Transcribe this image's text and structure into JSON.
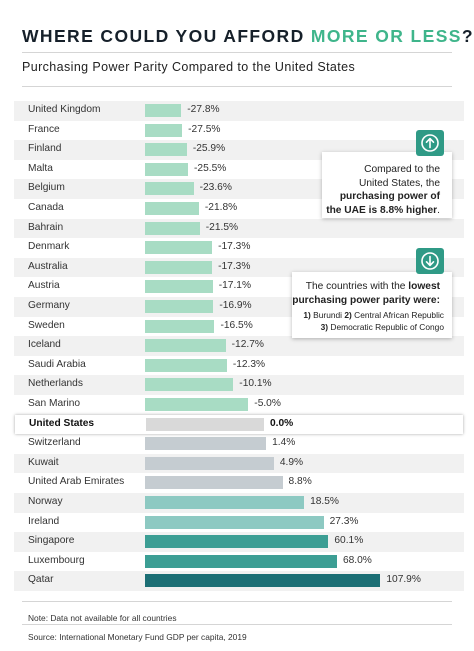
{
  "title": {
    "prefix": "WHERE COULD YOU AFFORD ",
    "highlight": "MORE OR LESS",
    "suffix": "?"
  },
  "subtitle": "Purchasing Power Parity Compared to the United States",
  "chart_data": {
    "type": "bar",
    "orientation": "horizontal",
    "title": "WHERE COULD YOU AFFORD MORE OR LESS?",
    "subtitle": "Purchasing Power Parity Compared to the United States",
    "unit": "%",
    "categories": [
      "United Kingdom",
      "France",
      "Finland",
      "Malta",
      "Belgium",
      "Canada",
      "Bahrain",
      "Denmark",
      "Australia",
      "Austria",
      "Germany",
      "Sweden",
      "Iceland",
      "Saudi Arabia",
      "Netherlands",
      "San Marino",
      "United States",
      "Switzerland",
      "Kuwait",
      "United Arab Emirates",
      "Norway",
      "Ireland",
      "Singapore",
      "Luxembourg",
      "Qatar"
    ],
    "values": [
      -27.8,
      -27.5,
      -25.9,
      -25.5,
      -23.6,
      -21.8,
      -21.5,
      -17.3,
      -17.3,
      -17.1,
      -16.9,
      -16.5,
      -12.7,
      -12.3,
      -10.1,
      -5.0,
      0.0,
      1.4,
      4.9,
      8.8,
      18.5,
      27.3,
      60.1,
      68.0,
      107.9
    ],
    "labels": [
      "-27.8%",
      "-27.5%",
      "-25.9%",
      "-25.5%",
      "-23.6%",
      "-21.8%",
      "-21.5%",
      "-17.3%",
      "-17.3%",
      "-17.1%",
      "-16.9%",
      "-16.5%",
      "-12.7%",
      "-12.3%",
      "-10.1%",
      "-5.0%",
      "0.0%",
      "1.4%",
      "4.9%",
      "8.8%",
      "18.5%",
      "27.3%",
      "60.1%",
      "68.0%",
      "107.9%"
    ],
    "highlight_category": "United States",
    "colors": {
      "negative": "#a8dcc4",
      "neutral": "#d9d9d9",
      "low_positive": "#c5ccd1",
      "mid_positive": "#8dc9c2",
      "high_positive": "#3c9e94",
      "top": "#1c6f75"
    }
  },
  "callouts": {
    "uae": {
      "icon": "arrow-up-circle-icon",
      "line1": "Compared to the",
      "line2": "United States, the",
      "bold1": "purchasing power of",
      "bold2": "the UAE is 8.8% higher",
      "end": "."
    },
    "lowest": {
      "icon": "arrow-down-circle-icon",
      "line1_pre": "The countries with the ",
      "line1_bold": "lowest",
      "line2": "purchasing power parity were:",
      "n1": "1)",
      "c1": " Burundi ",
      "n2": "2)",
      "c2": " Central African Republic",
      "n3": "3)",
      "c3": " Democratic Republic of Congo"
    }
  },
  "note": "Note: Data not available for all countries",
  "source": "Source: International Monetary Fund GDP per capita, 2019"
}
